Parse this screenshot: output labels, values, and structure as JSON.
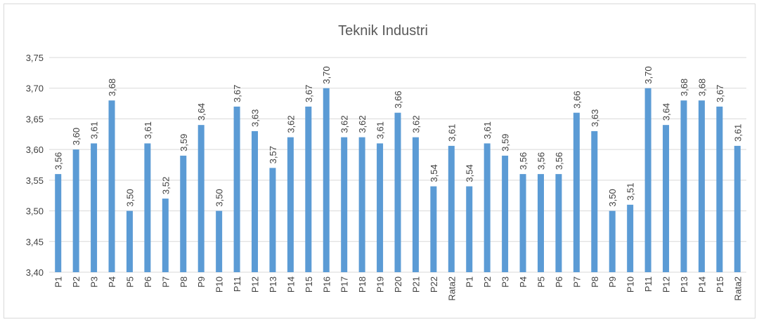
{
  "chart_data": {
    "type": "bar",
    "title": "Teknik Industri",
    "categories": [
      "P1",
      "P2",
      "P3",
      "P4",
      "P5",
      "P6",
      "P7",
      "P8",
      "P9",
      "P10",
      "P11",
      "P12",
      "P13",
      "P14",
      "P15",
      "P16",
      "P17",
      "P18",
      "P19",
      "P20",
      "P21",
      "P22",
      "Rata2",
      "P1",
      "P2",
      "P3",
      "P4",
      "P5",
      "P6",
      "P7",
      "P8",
      "P9",
      "P10",
      "P11",
      "P12",
      "P13",
      "P14",
      "P15",
      "Rata2"
    ],
    "values": [
      3.56,
      3.6,
      3.61,
      3.68,
      3.5,
      3.61,
      3.52,
      3.59,
      3.64,
      3.5,
      3.67,
      3.63,
      3.57,
      3.62,
      3.67,
      3.7,
      3.62,
      3.62,
      3.61,
      3.66,
      3.62,
      3.54,
      3.606,
      3.54,
      3.61,
      3.59,
      3.56,
      3.56,
      3.56,
      3.66,
      3.63,
      3.5,
      3.51,
      3.7,
      3.64,
      3.68,
      3.68,
      3.67,
      3.606
    ],
    "value_labels": [
      "3,56",
      "3,60",
      "3,61",
      "3,68",
      "3,50",
      "3,61",
      "3,52",
      "3,59",
      "3,64",
      "3,50",
      "3,67",
      "3,63",
      "3,57",
      "3,62",
      "3,67",
      "3,70",
      "3,62",
      "3,62",
      "3,61",
      "3,66",
      "3,62",
      "3,54",
      "3,61",
      "3,54",
      "3,61",
      "3,59",
      "3,56",
      "3,56",
      "3,56",
      "3,66",
      "3,63",
      "3,50",
      "3,51",
      "3,70",
      "3,64",
      "3,68",
      "3,68",
      "3,67",
      "3,61"
    ],
    "color": "#5b9bd5",
    "ylim": [
      3.4,
      3.75
    ],
    "yticks": [
      {
        "value": 3.4,
        "label": "3,40"
      },
      {
        "value": 3.45,
        "label": "3,45"
      },
      {
        "value": 3.5,
        "label": "3,50"
      },
      {
        "value": 3.55,
        "label": "3,55"
      },
      {
        "value": 3.6,
        "label": "3,60"
      },
      {
        "value": 3.65,
        "label": "3,65"
      },
      {
        "value": 3.7,
        "label": "3,70"
      },
      {
        "value": 3.75,
        "label": "3,75"
      }
    ],
    "grid": true
  }
}
